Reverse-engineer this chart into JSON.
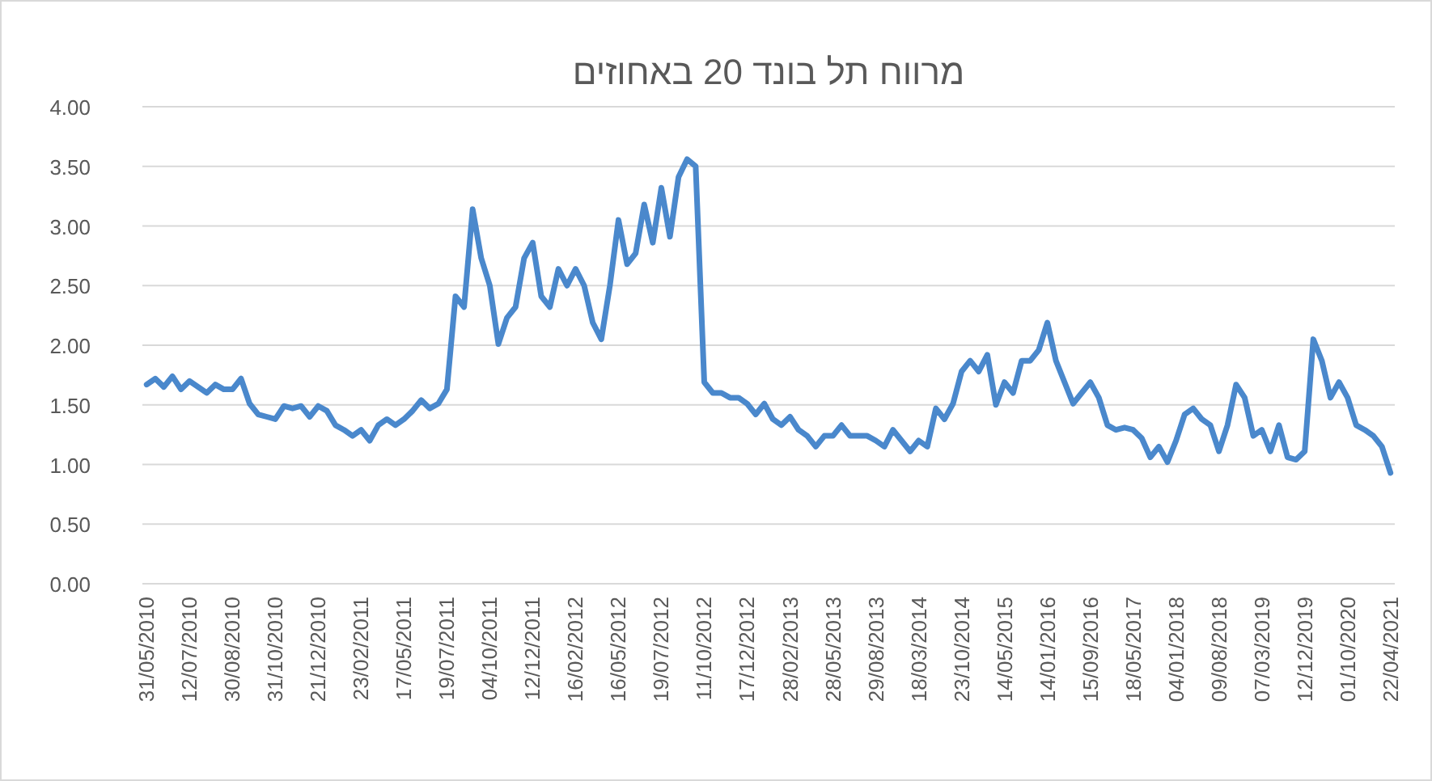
{
  "chart_data": {
    "type": "line",
    "title": "מרווח תל בונד 20 באחוזים",
    "categories": [
      "31/05/2010",
      null,
      null,
      null,
      null,
      "12/07/2010",
      null,
      null,
      null,
      null,
      "30/08/2010",
      null,
      null,
      null,
      null,
      "31/10/2010",
      null,
      null,
      null,
      null,
      "21/12/2010",
      null,
      null,
      null,
      null,
      "23/02/2011",
      null,
      null,
      null,
      null,
      "17/05/2011",
      null,
      null,
      null,
      null,
      "19/07/2011",
      null,
      null,
      null,
      null,
      "04/10/2011",
      null,
      null,
      null,
      null,
      "12/12/2011",
      null,
      null,
      null,
      null,
      "16/02/2012",
      null,
      null,
      null,
      null,
      "16/05/2012",
      null,
      null,
      null,
      null,
      "19/07/2012",
      null,
      null,
      null,
      null,
      "11/10/2012",
      null,
      null,
      null,
      null,
      "17/12/2012",
      null,
      null,
      null,
      null,
      "28/02/2013",
      null,
      null,
      null,
      null,
      "28/05/2013",
      null,
      null,
      null,
      null,
      "29/08/2013",
      null,
      null,
      null,
      null,
      "18/03/2014",
      null,
      null,
      null,
      null,
      "23/10/2014",
      null,
      null,
      null,
      null,
      "14/05/2015",
      null,
      null,
      null,
      null,
      "14/01/2016",
      null,
      null,
      null,
      null,
      "15/09/2016",
      null,
      null,
      null,
      null,
      "18/05/2017",
      null,
      null,
      null,
      null,
      "04/01/2018",
      null,
      null,
      null,
      null,
      "09/08/2018",
      null,
      null,
      null,
      null,
      "07/03/2019",
      null,
      null,
      null,
      null,
      "12/12/2019",
      null,
      null,
      null,
      null,
      "01/10/2020",
      null,
      null,
      null,
      null,
      "22/04/2021"
    ],
    "series": [
      {
        "color": "#4a88cc",
        "values": [
          1.67,
          1.72,
          1.65,
          1.74,
          1.63,
          1.7,
          1.65,
          1.6,
          1.67,
          1.63,
          1.63,
          1.72,
          1.51,
          1.42,
          1.4,
          1.38,
          1.49,
          1.47,
          1.49,
          1.4,
          1.49,
          1.45,
          1.33,
          1.29,
          1.24,
          1.29,
          1.2,
          1.33,
          1.38,
          1.33,
          1.38,
          1.45,
          1.54,
          1.47,
          1.51,
          1.63,
          2.41,
          2.32,
          3.14,
          2.73,
          2.5,
          2.01,
          2.23,
          2.32,
          2.73,
          2.86,
          2.41,
          2.32,
          2.64,
          2.5,
          2.64,
          2.5,
          2.19,
          2.05,
          2.5,
          3.05,
          2.68,
          2.77,
          3.18,
          2.86,
          3.32,
          2.91,
          3.41,
          3.56,
          3.5,
          1.69,
          1.6,
          1.6,
          1.56,
          1.56,
          1.51,
          1.42,
          1.51,
          1.38,
          1.33,
          1.4,
          1.29,
          1.24,
          1.15,
          1.24,
          1.24,
          1.33,
          1.24,
          1.24,
          1.24,
          1.2,
          1.15,
          1.29,
          1.2,
          1.11,
          1.2,
          1.15,
          1.47,
          1.38,
          1.51,
          1.78,
          1.87,
          1.78,
          1.92,
          1.5,
          1.69,
          1.6,
          1.87,
          1.87,
          1.96,
          2.19,
          1.87,
          1.69,
          1.51,
          1.6,
          1.69,
          1.56,
          1.33,
          1.29,
          1.31,
          1.29,
          1.22,
          1.06,
          1.15,
          1.02,
          1.2,
          1.42,
          1.47,
          1.38,
          1.33,
          1.11,
          1.33,
          1.67,
          1.56,
          1.24,
          1.29,
          1.11,
          1.33,
          1.06,
          1.04,
          1.11,
          2.05,
          1.87,
          1.56,
          1.69,
          1.56,
          1.33,
          1.29,
          1.24,
          1.15,
          0.93
        ]
      }
    ],
    "ylim": [
      0,
      4
    ],
    "yticks": [
      {
        "value": 0,
        "label": "0.00"
      },
      {
        "value": 0.5,
        "label": "0.50"
      },
      {
        "value": 1,
        "label": "1.00"
      },
      {
        "value": 1.5,
        "label": "1.50"
      },
      {
        "value": 2,
        "label": "2.00"
      },
      {
        "value": 2.5,
        "label": "2.50"
      },
      {
        "value": 3,
        "label": "3.00"
      },
      {
        "value": 3.5,
        "label": "3.50"
      },
      {
        "value": 4,
        "label": "4.00"
      }
    ],
    "grid": "y",
    "marker": "none",
    "line_style": "solid"
  }
}
